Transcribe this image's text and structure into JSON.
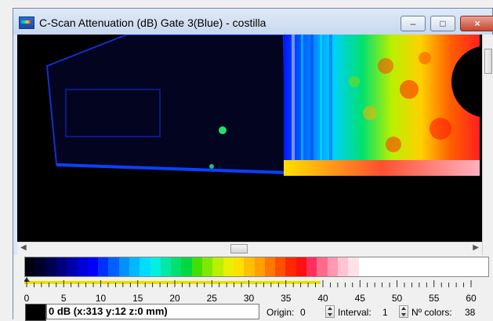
{
  "window": {
    "title": "C-Scan Attenuation (dB)  Gate 3(Blue) - costilla",
    "min_label": "–",
    "max_label": "□",
    "close_label": "×"
  },
  "icons": {
    "app": "cscan-palette-icon",
    "scroll_left": "arrow-left-icon",
    "scroll_right": "arrow-right-icon",
    "spin": "spin-arrows-icon"
  },
  "palette": {
    "colors": [
      "#000010",
      "#00002a",
      "#000050",
      "#00007a",
      "#0000a8",
      "#0000d8",
      "#0000ff",
      "#0030ff",
      "#0060ff",
      "#0090ff",
      "#00b8ff",
      "#00dcff",
      "#00f0e0",
      "#00e8a8",
      "#00e070",
      "#00d840",
      "#40e000",
      "#80e800",
      "#b8f000",
      "#e8f000",
      "#ffe000",
      "#ffc000",
      "#ffa000",
      "#ff7800",
      "#ff5000",
      "#ff2800",
      "#ff1010",
      "#ff3060",
      "#ff6a8a",
      "#ff98b0",
      "#ffc4d2",
      "#ffe2e8",
      "#ffffff",
      "#ffffff",
      "#ffffff",
      "#ffffff",
      "#ffffff",
      "#ffffff"
    ],
    "scale_labels": [
      "0",
      "5",
      "10",
      "15",
      "20",
      "25",
      "30",
      "35",
      "40",
      "45",
      "50",
      "55",
      "60"
    ]
  },
  "status": {
    "readout": "0 dB (x:313 y:12 z:0 mm)",
    "origin_label": "Origin:",
    "origin_value": "0",
    "interval_label": "Interval:",
    "interval_value": "1",
    "colors_label": "Nº colors:",
    "colors_value": "38"
  }
}
